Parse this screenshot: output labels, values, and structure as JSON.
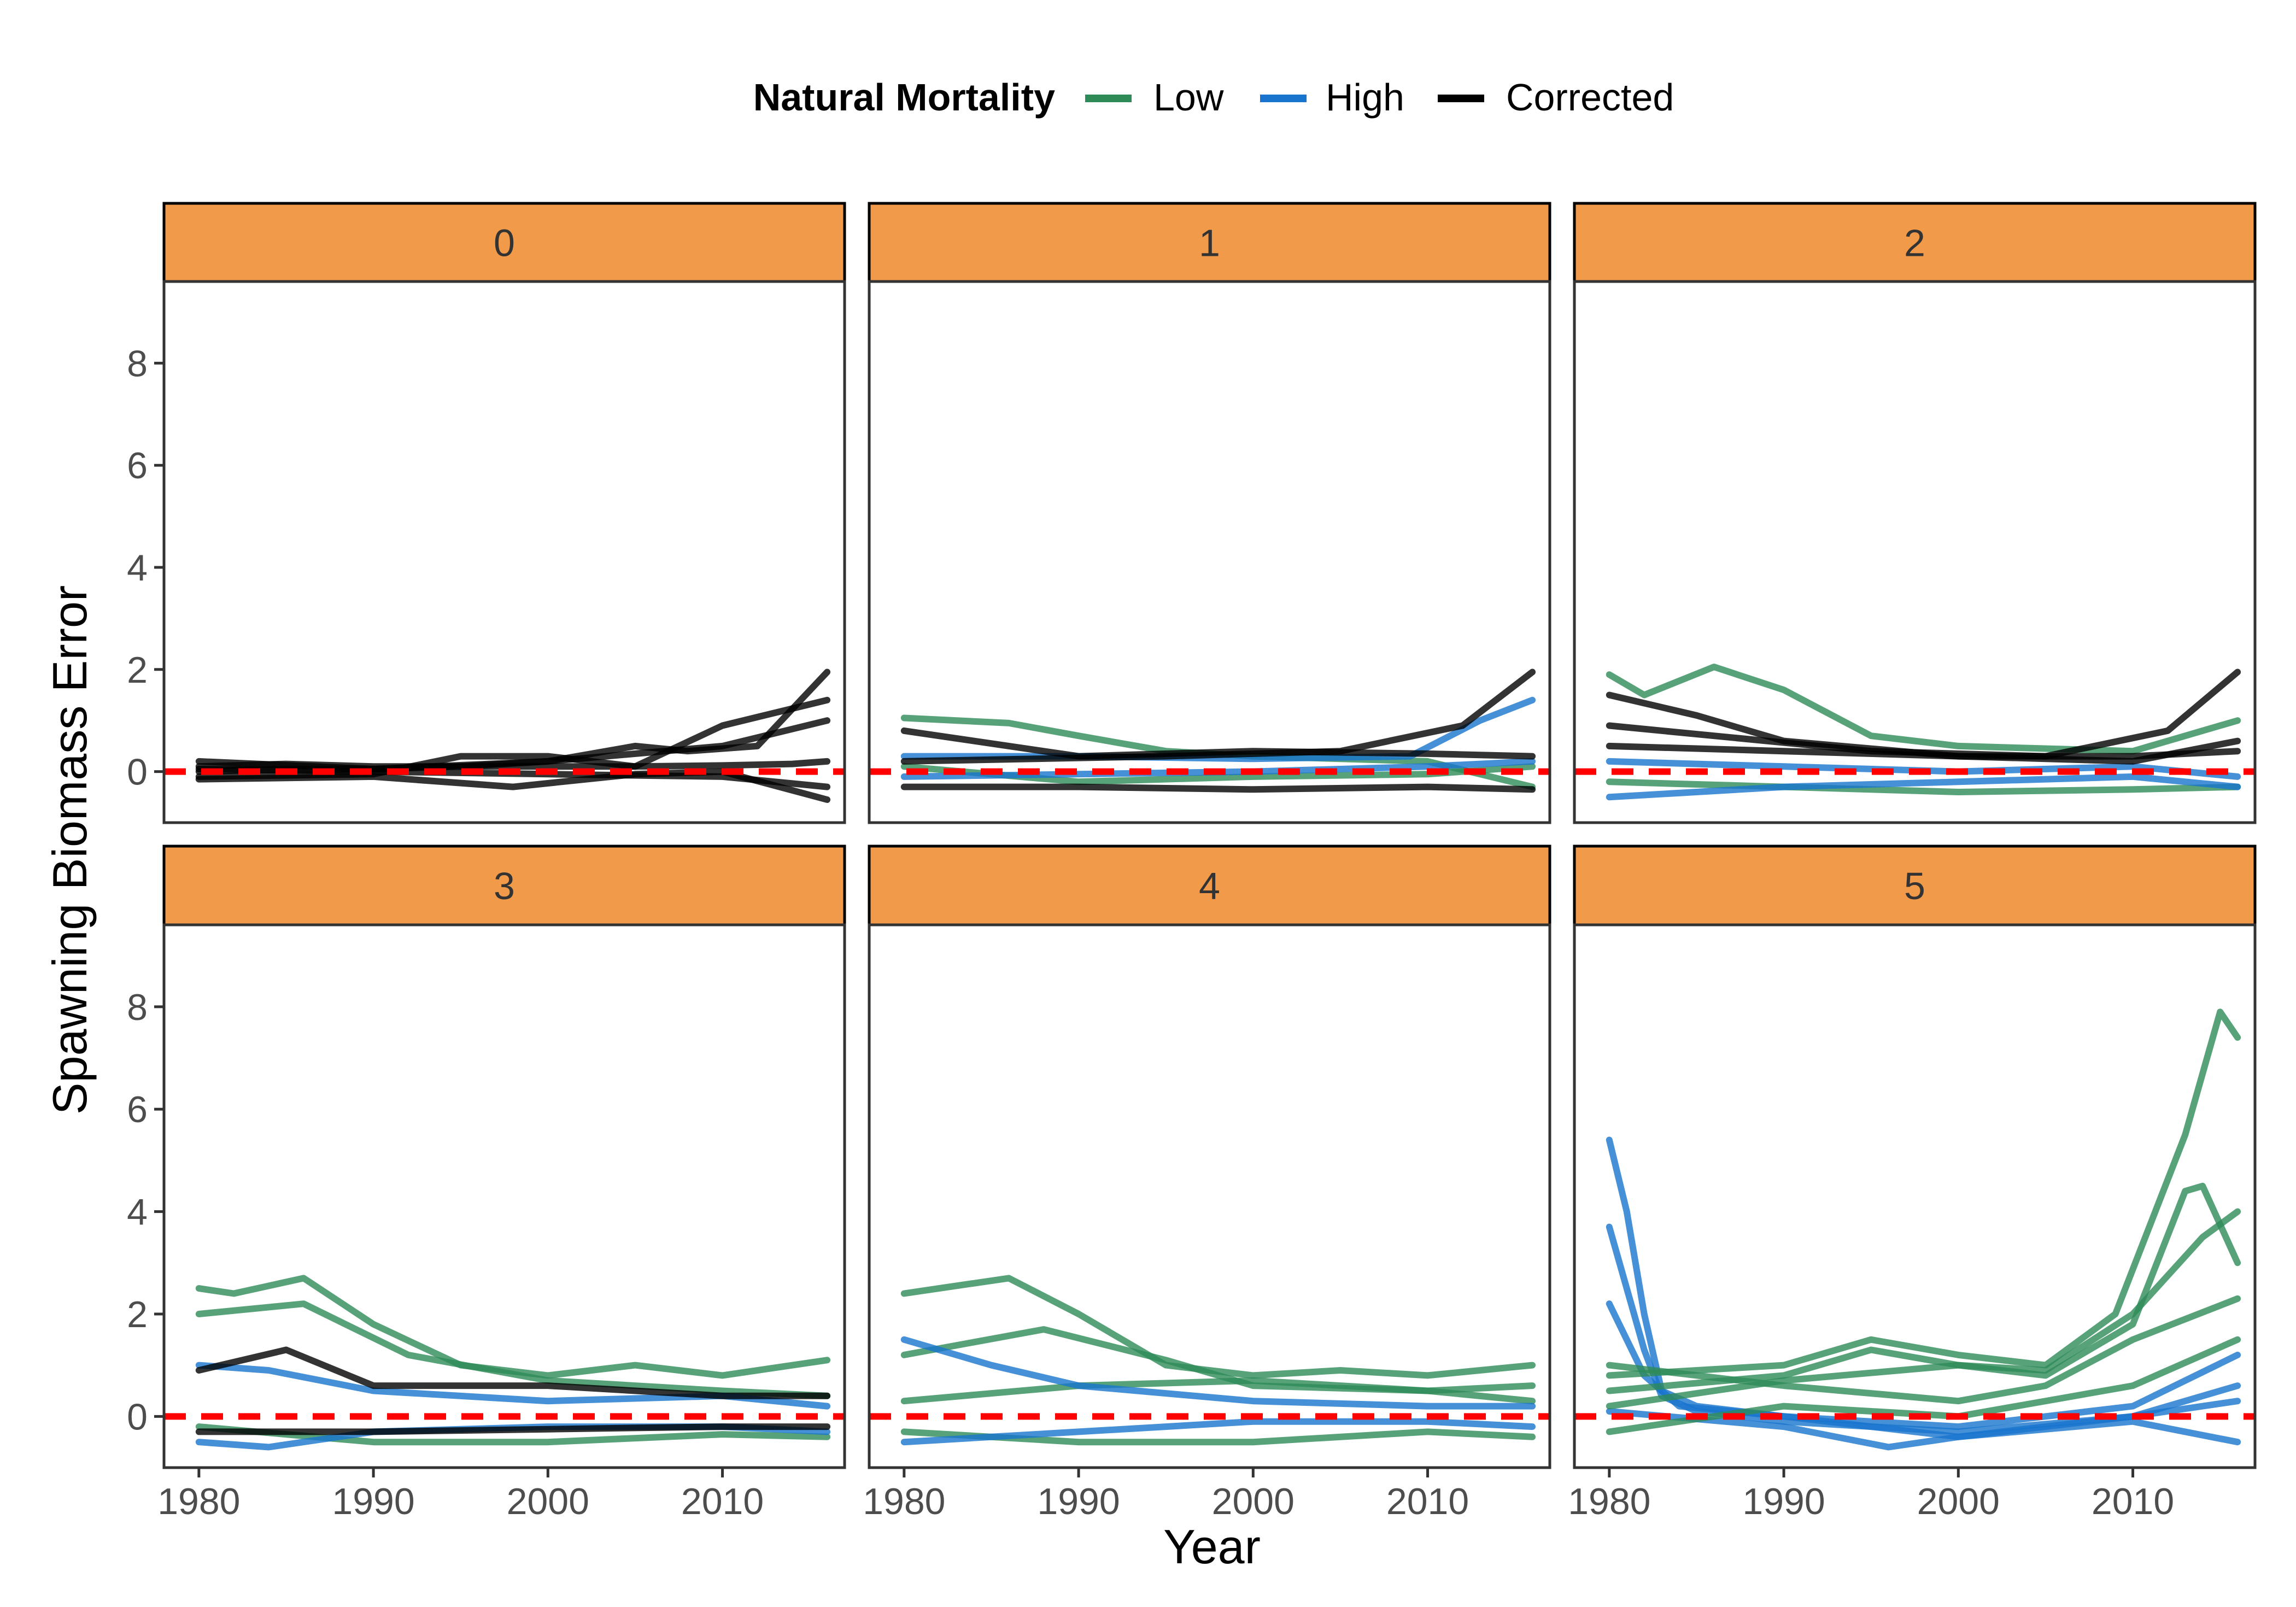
{
  "legend": {
    "title": "Natural Mortality",
    "items": [
      {
        "label": "Low",
        "color": "#2E8B57"
      },
      {
        "label": "High",
        "color": "#1874CD"
      },
      {
        "label": "Corrected",
        "color": "#000000"
      }
    ]
  },
  "chart_data": {
    "type": "line",
    "xlabel": "Year",
    "ylabel": "Spawning Biomass Error",
    "xlim": [
      1978,
      2017
    ],
    "ylim": [
      -1,
      9.6
    ],
    "x_ticks": [
      1980,
      1990,
      2000,
      2010
    ],
    "y_ticks": [
      0,
      2,
      4,
      6,
      8
    ],
    "reference_line": {
      "y": 0,
      "color": "#FF0000",
      "style": "dashed"
    },
    "strip_color": "#F09A4A",
    "facets": [
      {
        "label": "0",
        "series": [
          {
            "group": "Corrected",
            "x": [
              1980,
              1985,
              1990,
              1995,
              2000,
              2005,
              2010,
              2014,
              2016
            ],
            "y": [
              0.1,
              0.15,
              0.1,
              0.1,
              0.1,
              0.1,
              0.12,
              0.15,
              0.2
            ]
          },
          {
            "group": "Corrected",
            "x": [
              1980,
              1985,
              1990,
              1995,
              2000,
              2005,
              2008,
              2012,
              2016
            ],
            "y": [
              0.0,
              0.05,
              0.05,
              0.1,
              0.2,
              0.5,
              0.4,
              0.5,
              1.95
            ]
          },
          {
            "group": "Corrected",
            "x": [
              1980,
              1990,
              1995,
              2000,
              2005,
              2010,
              2016
            ],
            "y": [
              -0.1,
              -0.05,
              0.3,
              0.3,
              0.1,
              0.9,
              1.4
            ]
          },
          {
            "group": "Corrected",
            "x": [
              1980,
              1990,
              1998,
              2005,
              2010,
              2016
            ],
            "y": [
              -0.15,
              -0.1,
              -0.3,
              -0.05,
              0.0,
              -0.55
            ]
          },
          {
            "group": "Corrected",
            "x": [
              1980,
              1990,
              2000,
              2010,
              2016
            ],
            "y": [
              0.2,
              0.05,
              0.2,
              0.5,
              1.0
            ]
          },
          {
            "group": "Corrected",
            "x": [
              1980,
              1990,
              2000,
              2010,
              2016
            ],
            "y": [
              0.05,
              0.0,
              -0.05,
              -0.1,
              -0.3
            ]
          }
        ]
      },
      {
        "label": "1",
        "series": [
          {
            "group": "Low",
            "x": [
              1980,
              1986,
              1990,
              1995,
              2000,
              2005,
              2010,
              2016
            ],
            "y": [
              1.05,
              0.95,
              0.7,
              0.4,
              0.3,
              0.25,
              0.2,
              -0.3
            ]
          },
          {
            "group": "Low",
            "x": [
              1980,
              1990,
              2000,
              2010,
              2016
            ],
            "y": [
              0.1,
              -0.2,
              -0.1,
              -0.05,
              0.1
            ]
          },
          {
            "group": "High",
            "x": [
              1980,
              1990,
              2000,
              2009,
              2013,
              2016
            ],
            "y": [
              0.3,
              0.3,
              0.25,
              0.3,
              1.0,
              1.4
            ]
          },
          {
            "group": "High",
            "x": [
              1980,
              1990,
              2000,
              2010,
              2016
            ],
            "y": [
              -0.1,
              -0.05,
              0.0,
              0.1,
              0.2
            ]
          },
          {
            "group": "Corrected",
            "x": [
              1980,
              1990,
              2000,
              2010,
              2016
            ],
            "y": [
              0.8,
              0.3,
              0.4,
              0.35,
              0.3
            ]
          },
          {
            "group": "Corrected",
            "x": [
              1980,
              1990,
              2000,
              2010,
              2016
            ],
            "y": [
              -0.3,
              -0.3,
              -0.35,
              -0.3,
              -0.35
            ]
          },
          {
            "group": "Corrected",
            "x": [
              1980,
              1995,
              2005,
              2012,
              2016
            ],
            "y": [
              0.2,
              0.3,
              0.4,
              0.9,
              1.95
            ]
          }
        ]
      },
      {
        "label": "2",
        "series": [
          {
            "group": "Low",
            "x": [
              1980,
              1982,
              1986,
              1990,
              1995,
              2000,
              2010,
              2016
            ],
            "y": [
              1.9,
              1.5,
              2.05,
              1.6,
              0.7,
              0.5,
              0.4,
              1.0
            ]
          },
          {
            "group": "Low",
            "x": [
              1980,
              1990,
              2000,
              2010,
              2016
            ],
            "y": [
              -0.2,
              -0.3,
              -0.4,
              -0.35,
              -0.3
            ]
          },
          {
            "group": "High",
            "x": [
              1980,
              1990,
              2000,
              2010,
              2016
            ],
            "y": [
              0.2,
              0.1,
              0.0,
              0.1,
              -0.1
            ]
          },
          {
            "group": "High",
            "x": [
              1980,
              1990,
              2000,
              2010,
              2016
            ],
            "y": [
              -0.5,
              -0.3,
              -0.2,
              -0.1,
              -0.3
            ]
          },
          {
            "group": "Corrected",
            "x": [
              1980,
              1985,
              1990,
              2000,
              2010,
              2016
            ],
            "y": [
              1.5,
              1.1,
              0.6,
              0.3,
              0.3,
              0.4
            ]
          },
          {
            "group": "Corrected",
            "x": [
              1980,
              1990,
              2000,
              2010,
              2016
            ],
            "y": [
              0.5,
              0.4,
              0.3,
              0.2,
              0.6
            ]
          },
          {
            "group": "Corrected",
            "x": [
              1980,
              1995,
              2005,
              2012,
              2016
            ],
            "y": [
              0.9,
              0.4,
              0.3,
              0.8,
              1.95
            ]
          }
        ]
      },
      {
        "label": "3",
        "series": [
          {
            "group": "Low",
            "x": [
              1980,
              1982,
              1986,
              1990,
              1995,
              2000,
              2005,
              2010,
              2016
            ],
            "y": [
              2.5,
              2.4,
              2.7,
              1.8,
              1.0,
              0.8,
              1.0,
              0.8,
              1.1
            ]
          },
          {
            "group": "Low",
            "x": [
              1980,
              1986,
              1992,
              2000,
              2010,
              2016
            ],
            "y": [
              2.0,
              2.2,
              1.2,
              0.7,
              0.5,
              0.4
            ]
          },
          {
            "group": "Low",
            "x": [
              1980,
              1990,
              2000,
              2010,
              2016
            ],
            "y": [
              -0.2,
              -0.5,
              -0.5,
              -0.35,
              -0.4
            ]
          },
          {
            "group": "High",
            "x": [
              1980,
              1984,
              1990,
              2000,
              2010,
              2016
            ],
            "y": [
              1.0,
              0.9,
              0.5,
              0.3,
              0.4,
              0.2
            ]
          },
          {
            "group": "High",
            "x": [
              1980,
              1984,
              1990,
              2000,
              2010,
              2016
            ],
            "y": [
              -0.5,
              -0.6,
              -0.3,
              -0.2,
              -0.2,
              -0.3
            ]
          },
          {
            "group": "Corrected",
            "x": [
              1980,
              1985,
              1990,
              2000,
              2010,
              2016
            ],
            "y": [
              0.9,
              1.3,
              0.6,
              0.6,
              0.4,
              0.4
            ]
          },
          {
            "group": "Corrected",
            "x": [
              1980,
              1990,
              2000,
              2010,
              2016
            ],
            "y": [
              -0.3,
              -0.3,
              -0.25,
              -0.2,
              -0.2
            ]
          }
        ]
      },
      {
        "label": "4",
        "series": [
          {
            "group": "Low",
            "x": [
              1980,
              1982,
              1986,
              1990,
              1995,
              2000,
              2005,
              2010,
              2016
            ],
            "y": [
              2.4,
              2.5,
              2.7,
              2.0,
              1.0,
              0.8,
              0.9,
              0.8,
              1.0
            ]
          },
          {
            "group": "Low",
            "x": [
              1980,
              1988,
              1995,
              2000,
              2010,
              2016
            ],
            "y": [
              1.2,
              1.7,
              1.1,
              0.6,
              0.5,
              0.6
            ]
          },
          {
            "group": "Low",
            "x": [
              1980,
              1990,
              2000,
              2010,
              2016
            ],
            "y": [
              -0.3,
              -0.5,
              -0.5,
              -0.3,
              -0.4
            ]
          },
          {
            "group": "Low",
            "x": [
              1980,
              1990,
              2000,
              2010,
              2016
            ],
            "y": [
              0.3,
              0.6,
              0.7,
              0.5,
              0.3
            ]
          },
          {
            "group": "High",
            "x": [
              1980,
              1985,
              1990,
              2000,
              2010,
              2016
            ],
            "y": [
              1.5,
              1.0,
              0.6,
              0.3,
              0.2,
              0.2
            ]
          },
          {
            "group": "High",
            "x": [
              1980,
              1985,
              1990,
              2000,
              2010,
              2016
            ],
            "y": [
              -0.5,
              -0.4,
              -0.3,
              -0.1,
              -0.1,
              -0.2
            ]
          }
        ]
      },
      {
        "label": "5",
        "series": [
          {
            "group": "High",
            "x": [
              1980,
              1981,
              1982,
              1983,
              1985,
              1990,
              2000,
              2010,
              2016
            ],
            "y": [
              5.4,
              4.0,
              2.0,
              0.5,
              0.2,
              0.0,
              -0.2,
              0.2,
              1.2
            ]
          },
          {
            "group": "High",
            "x": [
              1980,
              1982,
              1983,
              1985,
              1990,
              2000,
              2010,
              2016
            ],
            "y": [
              3.7,
              1.3,
              0.4,
              0.1,
              -0.1,
              -0.3,
              0.0,
              0.3
            ]
          },
          {
            "group": "High",
            "x": [
              1980,
              1982,
              1984,
              1990,
              2000,
              2010,
              2016
            ],
            "y": [
              2.2,
              0.8,
              0.2,
              0.0,
              -0.4,
              -0.1,
              -0.5
            ]
          },
          {
            "group": "High",
            "x": [
              1980,
              1990,
              1996,
              2000,
              2010,
              2016
            ],
            "y": [
              0.1,
              -0.2,
              -0.6,
              -0.4,
              0.0,
              0.6
            ]
          },
          {
            "group": "Low",
            "x": [
              1980,
              1990,
              1995,
              2000,
              2005,
              2009,
              2013,
              2015,
              2016
            ],
            "y": [
              0.8,
              1.0,
              1.5,
              1.2,
              1.0,
              2.0,
              5.5,
              7.9,
              7.4
            ]
          },
          {
            "group": "Low",
            "x": [
              1980,
              1990,
              1995,
              2000,
              2005,
              2010,
              2013,
              2014,
              2016
            ],
            "y": [
              0.5,
              0.8,
              1.3,
              1.0,
              0.8,
              1.8,
              4.4,
              4.5,
              3.0
            ]
          },
          {
            "group": "Low",
            "x": [
              1980,
              1990,
              2000,
              2005,
              2010,
              2014,
              2016
            ],
            "y": [
              0.2,
              0.7,
              1.0,
              0.9,
              2.0,
              3.5,
              4.0
            ]
          },
          {
            "group": "Low",
            "x": [
              1980,
              1990,
              2000,
              2005,
              2010,
              2016
            ],
            "y": [
              1.0,
              0.6,
              0.3,
              0.6,
              1.5,
              2.3
            ]
          },
          {
            "group": "Low",
            "x": [
              1980,
              1990,
              2000,
              2010,
              2016
            ],
            "y": [
              -0.3,
              0.2,
              0.0,
              0.6,
              1.5
            ]
          }
        ]
      }
    ]
  }
}
